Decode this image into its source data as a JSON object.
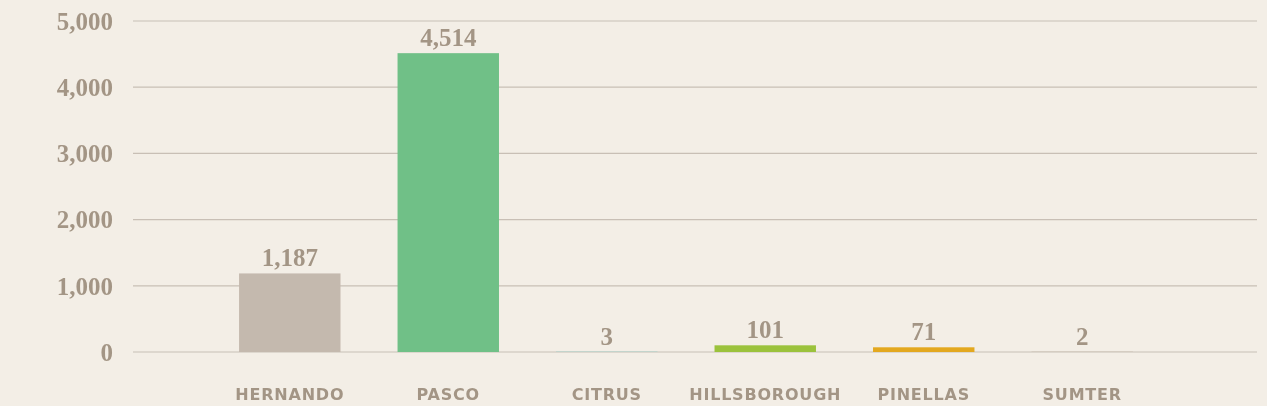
{
  "chart_data": {
    "type": "bar",
    "categories": [
      "HERNANDO",
      "PASCO",
      "CITRUS",
      "HILLSBOROUGH",
      "PINELLAS",
      "SUMTER"
    ],
    "values": [
      1187,
      4514,
      3,
      101,
      71,
      2
    ],
    "colors": [
      "#c4b9ae",
      "#70c087",
      "#5bc4c4",
      "#9bc23c",
      "#e3a81f",
      "#a08b78"
    ],
    "ylim": [
      0,
      5000
    ],
    "yticks": [
      {
        "value": 0,
        "label": "0"
      },
      {
        "value": 1000,
        "label": "1,000"
      },
      {
        "value": 2000,
        "label": "2,000"
      },
      {
        "value": 3000,
        "label": "3,000"
      },
      {
        "value": 4000,
        "label": "4,000"
      },
      {
        "value": 5000,
        "label": "5,000"
      }
    ],
    "value_labels": [
      "1,187",
      "4,514",
      "3",
      "101",
      "71",
      "2"
    ],
    "grid": "y"
  }
}
